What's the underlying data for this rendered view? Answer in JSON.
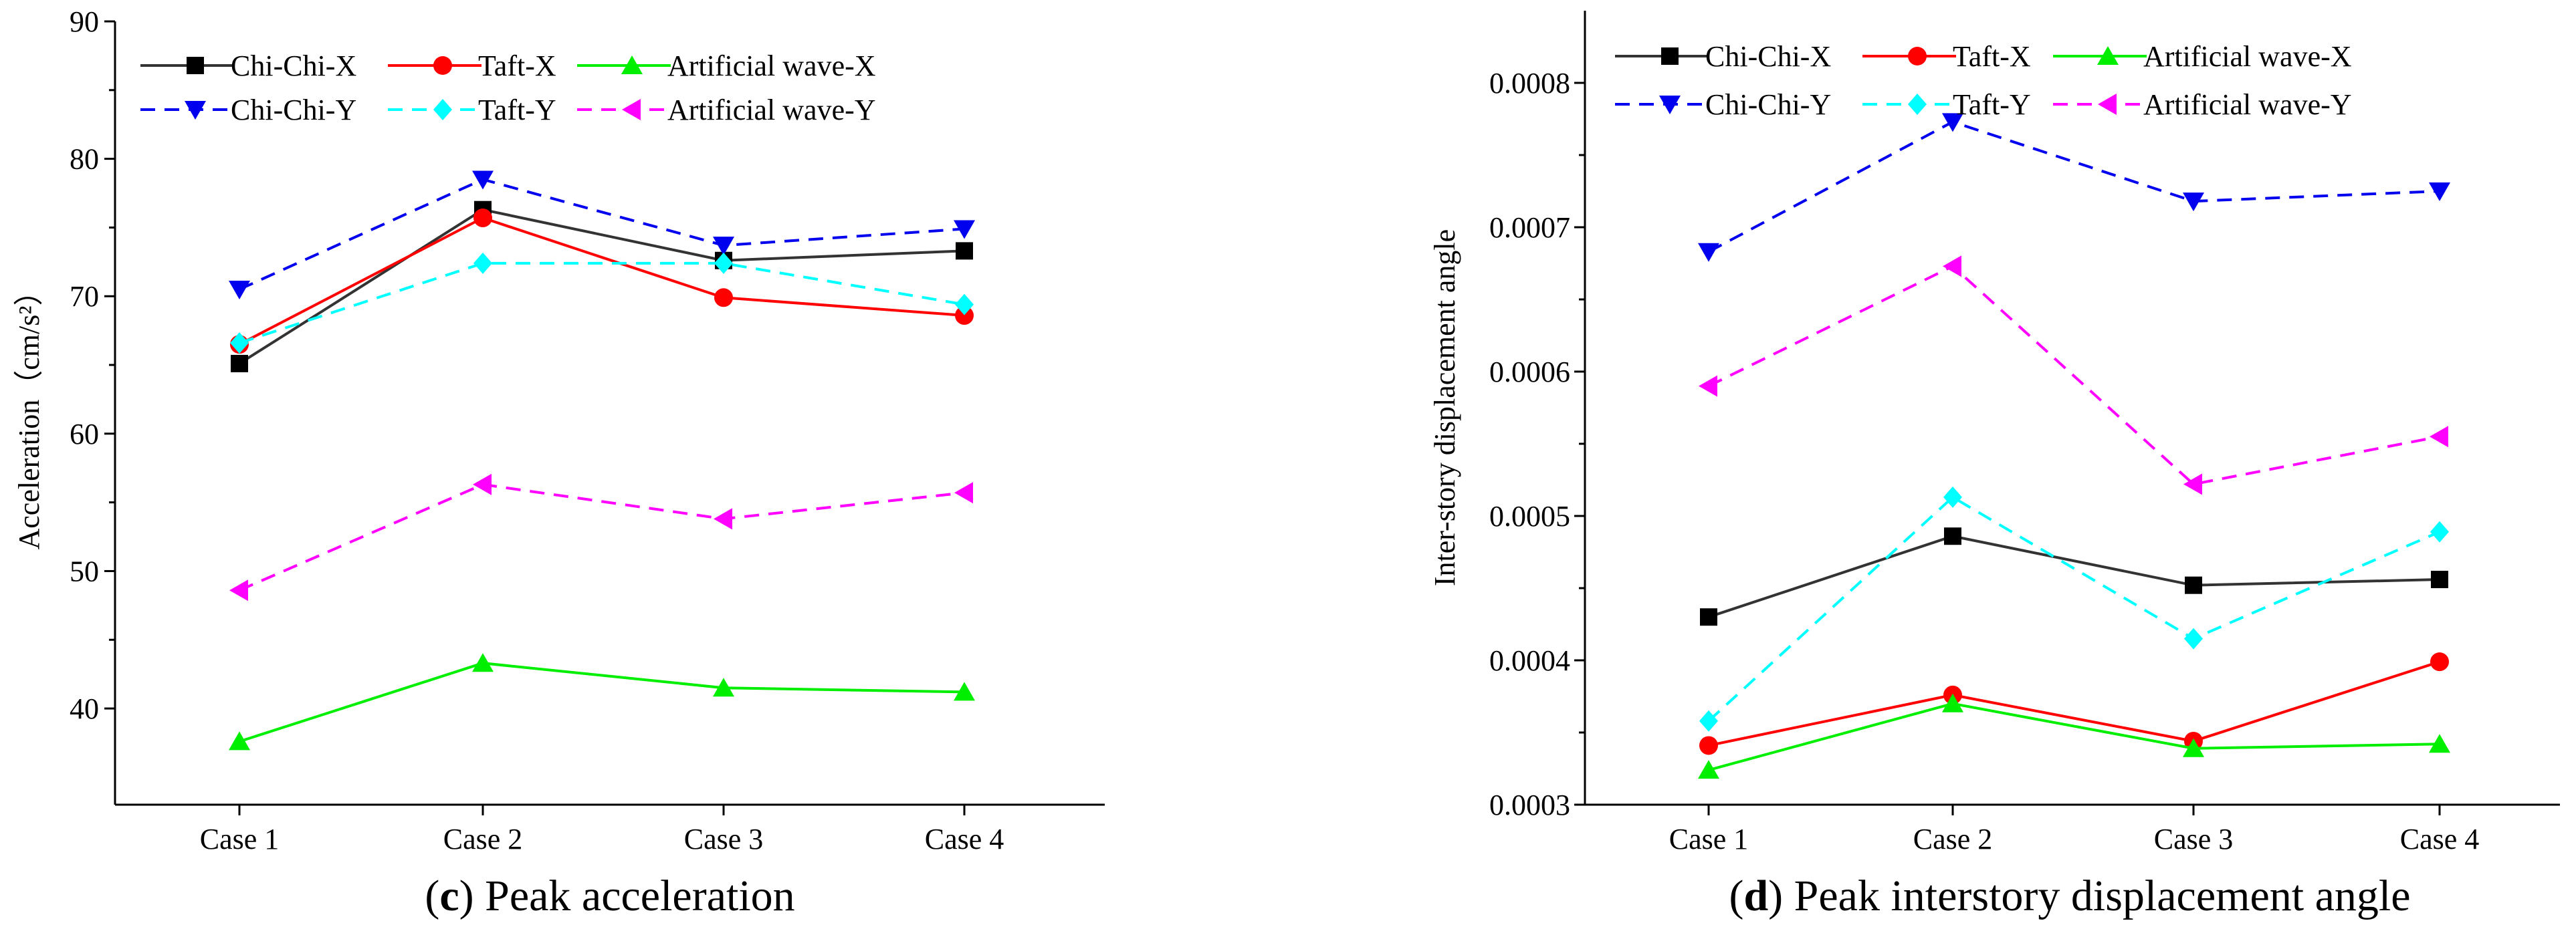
{
  "chart_data": [
    {
      "type": "line",
      "caption_letter": "c",
      "caption_text": " Peak acceleration",
      "ylabel": "Acceleration",
      "ylabel_unit": "（cm/s²）",
      "categories": [
        "Case 1",
        "Case 2",
        "Case 3",
        "Case 4"
      ],
      "ylim": [
        33,
        90
      ],
      "yticks": [
        40,
        50,
        60,
        70,
        80,
        90
      ],
      "ytick_labels": [
        "40",
        "50",
        "60",
        "70",
        "80",
        "90"
      ],
      "series": [
        {
          "name": "Chi-Chi-X",
          "values": [
            65.1,
            76.3,
            72.6,
            73.3
          ],
          "color": "#000000",
          "marker": "square",
          "dashed": false,
          "line_color": "#333333"
        },
        {
          "name": "Taft-X",
          "values": [
            66.5,
            75.7,
            69.9,
            68.6
          ],
          "color": "#ff0000",
          "marker": "circle",
          "dashed": false,
          "line_color": "#ff0000"
        },
        {
          "name": "Artificial wave-X",
          "values": [
            37.6,
            43.3,
            41.5,
            41.2
          ],
          "color": "#00ee00",
          "marker": "triangle-up",
          "dashed": false,
          "line_color": "#00ee00"
        },
        {
          "name": "Chi-Chi-Y",
          "values": [
            70.5,
            78.5,
            73.7,
            74.9
          ],
          "color": "#0000ee",
          "marker": "triangle-down",
          "dashed": true,
          "line_color": "#0000ee"
        },
        {
          "name": "Taft-Y",
          "values": [
            66.6,
            72.4,
            72.4,
            69.4
          ],
          "color": "#00ffff",
          "marker": "diamond",
          "dashed": true,
          "line_color": "#00ffff"
        },
        {
          "name": "Artificial wave-Y",
          "values": [
            48.6,
            56.3,
            53.8,
            55.7
          ],
          "color": "#ff00ff",
          "marker": "triangle-left",
          "dashed": true,
          "line_color": "#ff00ff"
        }
      ]
    },
    {
      "type": "line",
      "caption_letter": "d",
      "caption_text": " Peak interstory displacement angle",
      "ylabel": "Inter-story displacement angle",
      "ylabel_unit": "",
      "categories": [
        "Case 1",
        "Case 2",
        "Case 3",
        "Case 4"
      ],
      "ylim": [
        0.0003,
        0.00085
      ],
      "yticks": [
        0.0003,
        0.0004,
        0.0005,
        0.0006,
        0.0007,
        0.0008
      ],
      "ytick_labels": [
        "0.0003",
        "0.0004",
        "0.0005",
        "0.0006",
        "0.0007",
        "0.0008"
      ],
      "series": [
        {
          "name": "Chi-Chi-X",
          "values": [
            0.00043,
            0.000486,
            0.000452,
            0.000456
          ],
          "color": "#000000",
          "marker": "square",
          "dashed": false,
          "line_color": "#333333"
        },
        {
          "name": "Taft-X",
          "values": [
            0.000341,
            0.000376,
            0.000344,
            0.000399
          ],
          "color": "#ff0000",
          "marker": "circle",
          "dashed": false,
          "line_color": "#ff0000"
        },
        {
          "name": "Artificial wave-X",
          "values": [
            0.000324,
            0.00037,
            0.000339,
            0.000342
          ],
          "color": "#00ee00",
          "marker": "triangle-up",
          "dashed": false,
          "line_color": "#00ee00"
        },
        {
          "name": "Chi-Chi-Y",
          "values": [
            0.000683,
            0.000773,
            0.000718,
            0.000725
          ],
          "color": "#0000ee",
          "marker": "triangle-down",
          "dashed": true,
          "line_color": "#0000ee"
        },
        {
          "name": "Taft-Y",
          "values": [
            0.000358,
            0.000513,
            0.000415,
            0.000489
          ],
          "color": "#00ffff",
          "marker": "diamond",
          "dashed": true,
          "line_color": "#00ffff"
        },
        {
          "name": "Artificial wave-Y",
          "values": [
            0.00059,
            0.000673,
            0.000522,
            0.000555
          ],
          "color": "#ff00ff",
          "marker": "triangle-left",
          "dashed": true,
          "line_color": "#ff00ff"
        }
      ]
    }
  ]
}
